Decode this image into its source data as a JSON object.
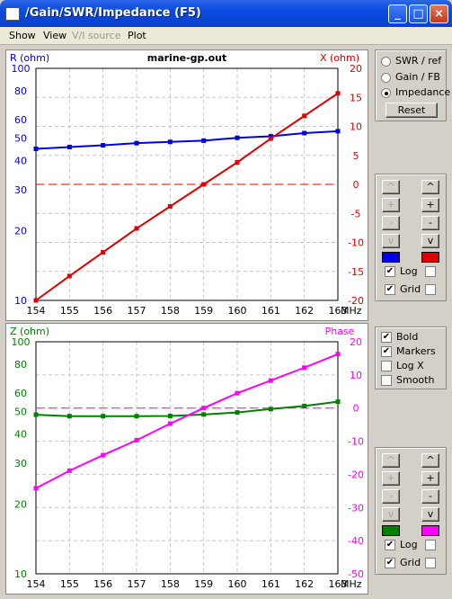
{
  "window": {
    "title": "/Gain/SWR/Impedance  (F5)"
  },
  "menu": [
    {
      "label": "Show",
      "enabled": true
    },
    {
      "label": "View",
      "enabled": true
    },
    {
      "label": "V/I source",
      "enabled": false
    },
    {
      "label": "Plot",
      "enabled": true
    }
  ],
  "modes": {
    "items": [
      {
        "label": "SWR / ref",
        "selected": false
      },
      {
        "label": "Gain / FB",
        "selected": false
      },
      {
        "label": "Impedance",
        "selected": true
      }
    ],
    "reset_label": "Reset"
  },
  "controls": {
    "top": {
      "left_buttons": [
        "^",
        "+",
        "-",
        "v"
      ],
      "right_buttons": [
        "^",
        "+",
        "-",
        "v"
      ],
      "left_color": "#0000e0",
      "right_color": "#e00000",
      "log_label": "Log",
      "log_left": true,
      "log_right": false,
      "grid_label": "Grid",
      "grid_left": true,
      "grid_right": false
    },
    "bottom": {
      "left_buttons": [
        "^",
        "+",
        "-",
        "v"
      ],
      "right_buttons": [
        "^",
        "+",
        "-",
        "v"
      ],
      "left_color": "#008000",
      "right_color": "#ff00ff",
      "log_label": "Log",
      "log_left": true,
      "log_right": false,
      "grid_label": "Grid",
      "grid_left": true,
      "grid_right": false
    }
  },
  "options": [
    {
      "label": "Bold",
      "checked": true
    },
    {
      "label": "Markers",
      "checked": true
    },
    {
      "label": "Log X",
      "checked": false
    },
    {
      "label": "Smooth",
      "checked": false
    }
  ],
  "chart_data": [
    {
      "type": "line",
      "title": "marine-gp.out",
      "ylabel_left": "R (ohm)",
      "ylabel_right": "X (ohm)",
      "xunit": "MHz",
      "x": [
        154,
        155,
        156,
        157,
        158,
        159,
        160,
        161,
        162,
        163
      ],
      "x_ticks": [
        "154",
        "155",
        "156",
        "157",
        "158",
        "159",
        "160",
        "161",
        "162",
        "163"
      ],
      "left_scale": "log",
      "ylim_left": [
        10,
        100
      ],
      "yticks_left": [
        {
          "v": 100,
          "label": "100"
        },
        {
          "v": 80,
          "label": "80"
        },
        {
          "v": 60,
          "label": "60"
        },
        {
          "v": 50,
          "label": "50"
        },
        {
          "v": 40,
          "label": "40"
        },
        {
          "v": 30,
          "label": "30"
        },
        {
          "v": 20,
          "label": "20"
        },
        {
          "v": 10,
          "label": "10"
        }
      ],
      "ylim_right": [
        -20,
        20
      ],
      "yticks_right": [
        "20",
        "15",
        "10",
        "5",
        "0",
        "-5",
        "-10",
        "-15",
        "-20"
      ],
      "reference_line_right": 0,
      "grid": true,
      "series": [
        {
          "axis": "left",
          "color": "#0000e0",
          "values": [
            45,
            45.8,
            46.6,
            47.6,
            48.2,
            48.8,
            50.2,
            51,
            52.6,
            53.6
          ]
        },
        {
          "axis": "right",
          "color": "#e00000",
          "values": [
            -20,
            -15.8,
            -11.7,
            -7.6,
            -3.8,
            0,
            3.8,
            7.9,
            11.8,
            15.7
          ]
        }
      ]
    },
    {
      "type": "line",
      "title": "",
      "ylabel_left": "Z (ohm)",
      "ylabel_right": "Phase",
      "xunit": "MHz",
      "x": [
        154,
        155,
        156,
        157,
        158,
        159,
        160,
        161,
        162,
        163
      ],
      "x_ticks": [
        "154",
        "155",
        "156",
        "157",
        "158",
        "159",
        "160",
        "161",
        "162",
        "163"
      ],
      "left_scale": "log",
      "ylim_left": [
        10,
        100
      ],
      "yticks_left": [
        {
          "v": 100,
          "label": "100"
        },
        {
          "v": 80,
          "label": "80"
        },
        {
          "v": 60,
          "label": "60"
        },
        {
          "v": 50,
          "label": "50"
        },
        {
          "v": 40,
          "label": "40"
        },
        {
          "v": 30,
          "label": "30"
        },
        {
          "v": 20,
          "label": "20"
        },
        {
          "v": 10,
          "label": "10"
        }
      ],
      "ylim_right": [
        -50,
        20
      ],
      "yticks_right": [
        "20",
        "10",
        "0",
        "-10",
        "-20",
        "-30",
        "-40",
        "-50"
      ],
      "reference_line_right": 0,
      "grid": true,
      "series": [
        {
          "axis": "left",
          "color": "#008000",
          "values": [
            48.5,
            47.8,
            47.8,
            47.8,
            47.9,
            48.6,
            49.6,
            51.3,
            52.9,
            55.2
          ]
        },
        {
          "axis": "right",
          "color": "#ff00ff",
          "values": [
            -24.2,
            -18.9,
            -14.2,
            -9.7,
            -4.7,
            0,
            4.5,
            8.3,
            12.2,
            16.3
          ]
        }
      ]
    }
  ]
}
